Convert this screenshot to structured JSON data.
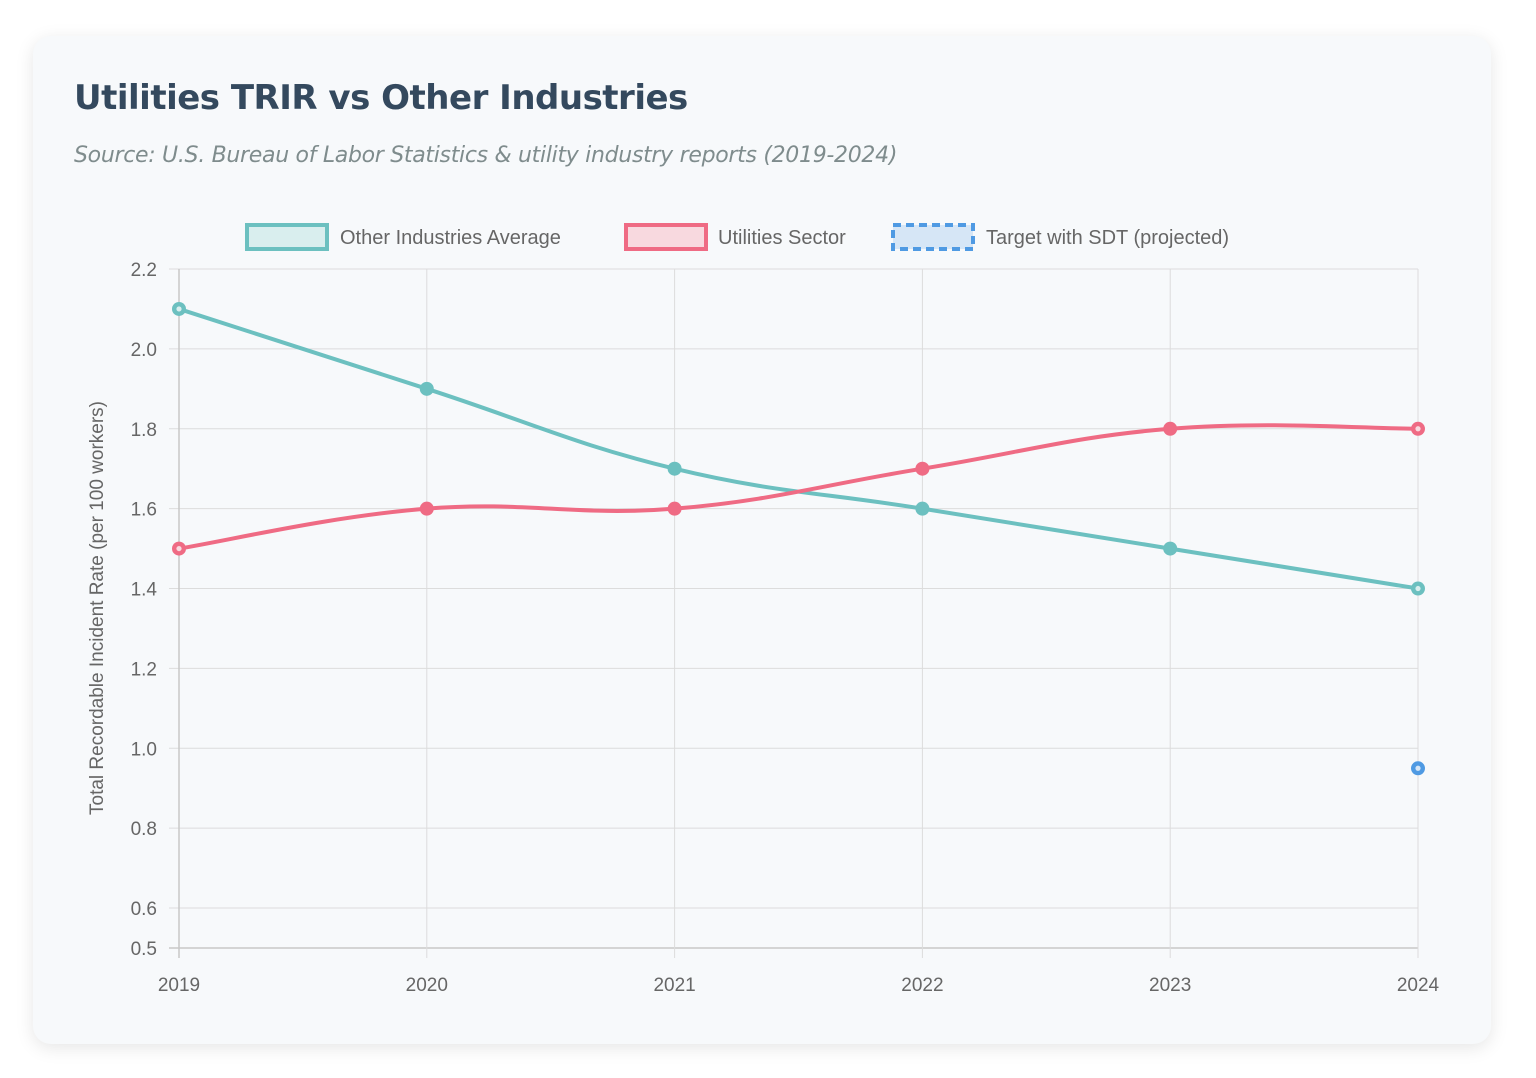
{
  "header": {
    "title": "Utilities TRIR vs Other Industries",
    "subtitle": "Source: U.S. Bureau of Labor Statistics & utility industry reports (2019-2024)"
  },
  "chart_data": {
    "type": "line",
    "title": "Utilities TRIR vs Other Industries",
    "subtitle": "Source: U.S. Bureau of Labor Statistics & utility industry reports (2019-2024)",
    "xlabel": "",
    "ylabel": "Total Recordable Incident Rate (per 100 workers)",
    "categories": [
      "2019",
      "2020",
      "2021",
      "2022",
      "2023",
      "2024"
    ],
    "ylim": [
      0.5,
      2.2
    ],
    "yticks": [
      0.5,
      0.6,
      0.8,
      1.0,
      1.2,
      1.4,
      1.6,
      1.8,
      2.0,
      2.2
    ],
    "ytick_labels": [
      "0.5",
      "0.6",
      "0.8",
      "1.0",
      "1.2",
      "1.4",
      "1.6",
      "1.8",
      "2.0",
      "2.2"
    ],
    "grid": true,
    "legend_position": "top-center",
    "series": [
      {
        "name": "Other Industries Average",
        "color": "#6cc0c0",
        "fill": "#d9eeee",
        "dashed": false,
        "values": [
          2.1,
          1.9,
          1.7,
          1.6,
          1.5,
          1.4
        ]
      },
      {
        "name": "Utilities Sector",
        "color": "#ef6b84",
        "fill": "#f8d9df",
        "dashed": false,
        "values": [
          1.5,
          1.6,
          1.6,
          1.7,
          1.8,
          1.8
        ]
      },
      {
        "name": "Target with SDT (projected)",
        "color": "#4f9ae3",
        "fill": "#d6e6f6",
        "dashed": true,
        "values": [
          null,
          null,
          null,
          null,
          null,
          0.95
        ]
      }
    ]
  }
}
